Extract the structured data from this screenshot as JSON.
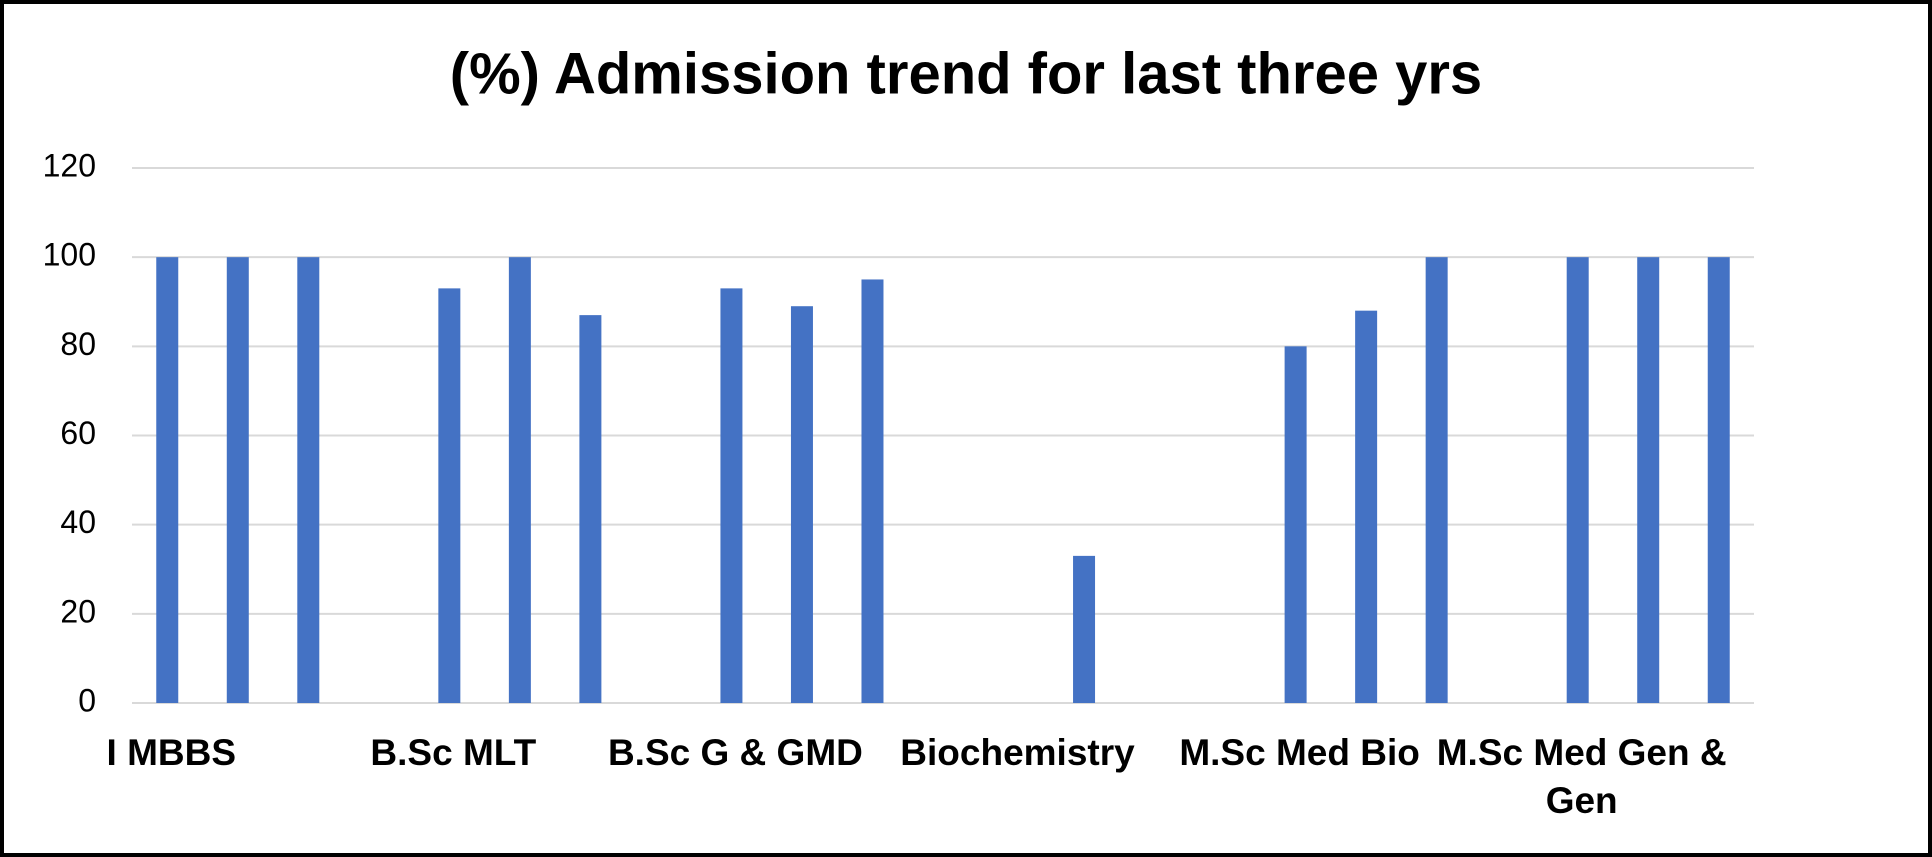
{
  "chart_data": {
    "type": "bar",
    "title": "(%) Admission trend for last three yrs",
    "categories": [
      "I MBBS",
      null,
      null,
      null,
      "B.Sc MLT",
      null,
      null,
      null,
      "B.Sc G & GMD",
      null,
      null,
      null,
      "Biochemistry",
      null,
      null,
      null,
      "M.Sc Med Bio",
      null,
      null,
      null,
      "M.Sc Med Gen & Gen",
      null,
      null
    ],
    "values": [
      100,
      100,
      100,
      null,
      93,
      100,
      87,
      null,
      93,
      89,
      95,
      null,
      null,
      33,
      null,
      null,
      80,
      88,
      100,
      null,
      100,
      100,
      100
    ],
    "color": "#4472c4",
    "ylim": [
      0,
      120
    ],
    "yticks": [
      0,
      20,
      40,
      60,
      80,
      100,
      120
    ],
    "grid": true
  }
}
